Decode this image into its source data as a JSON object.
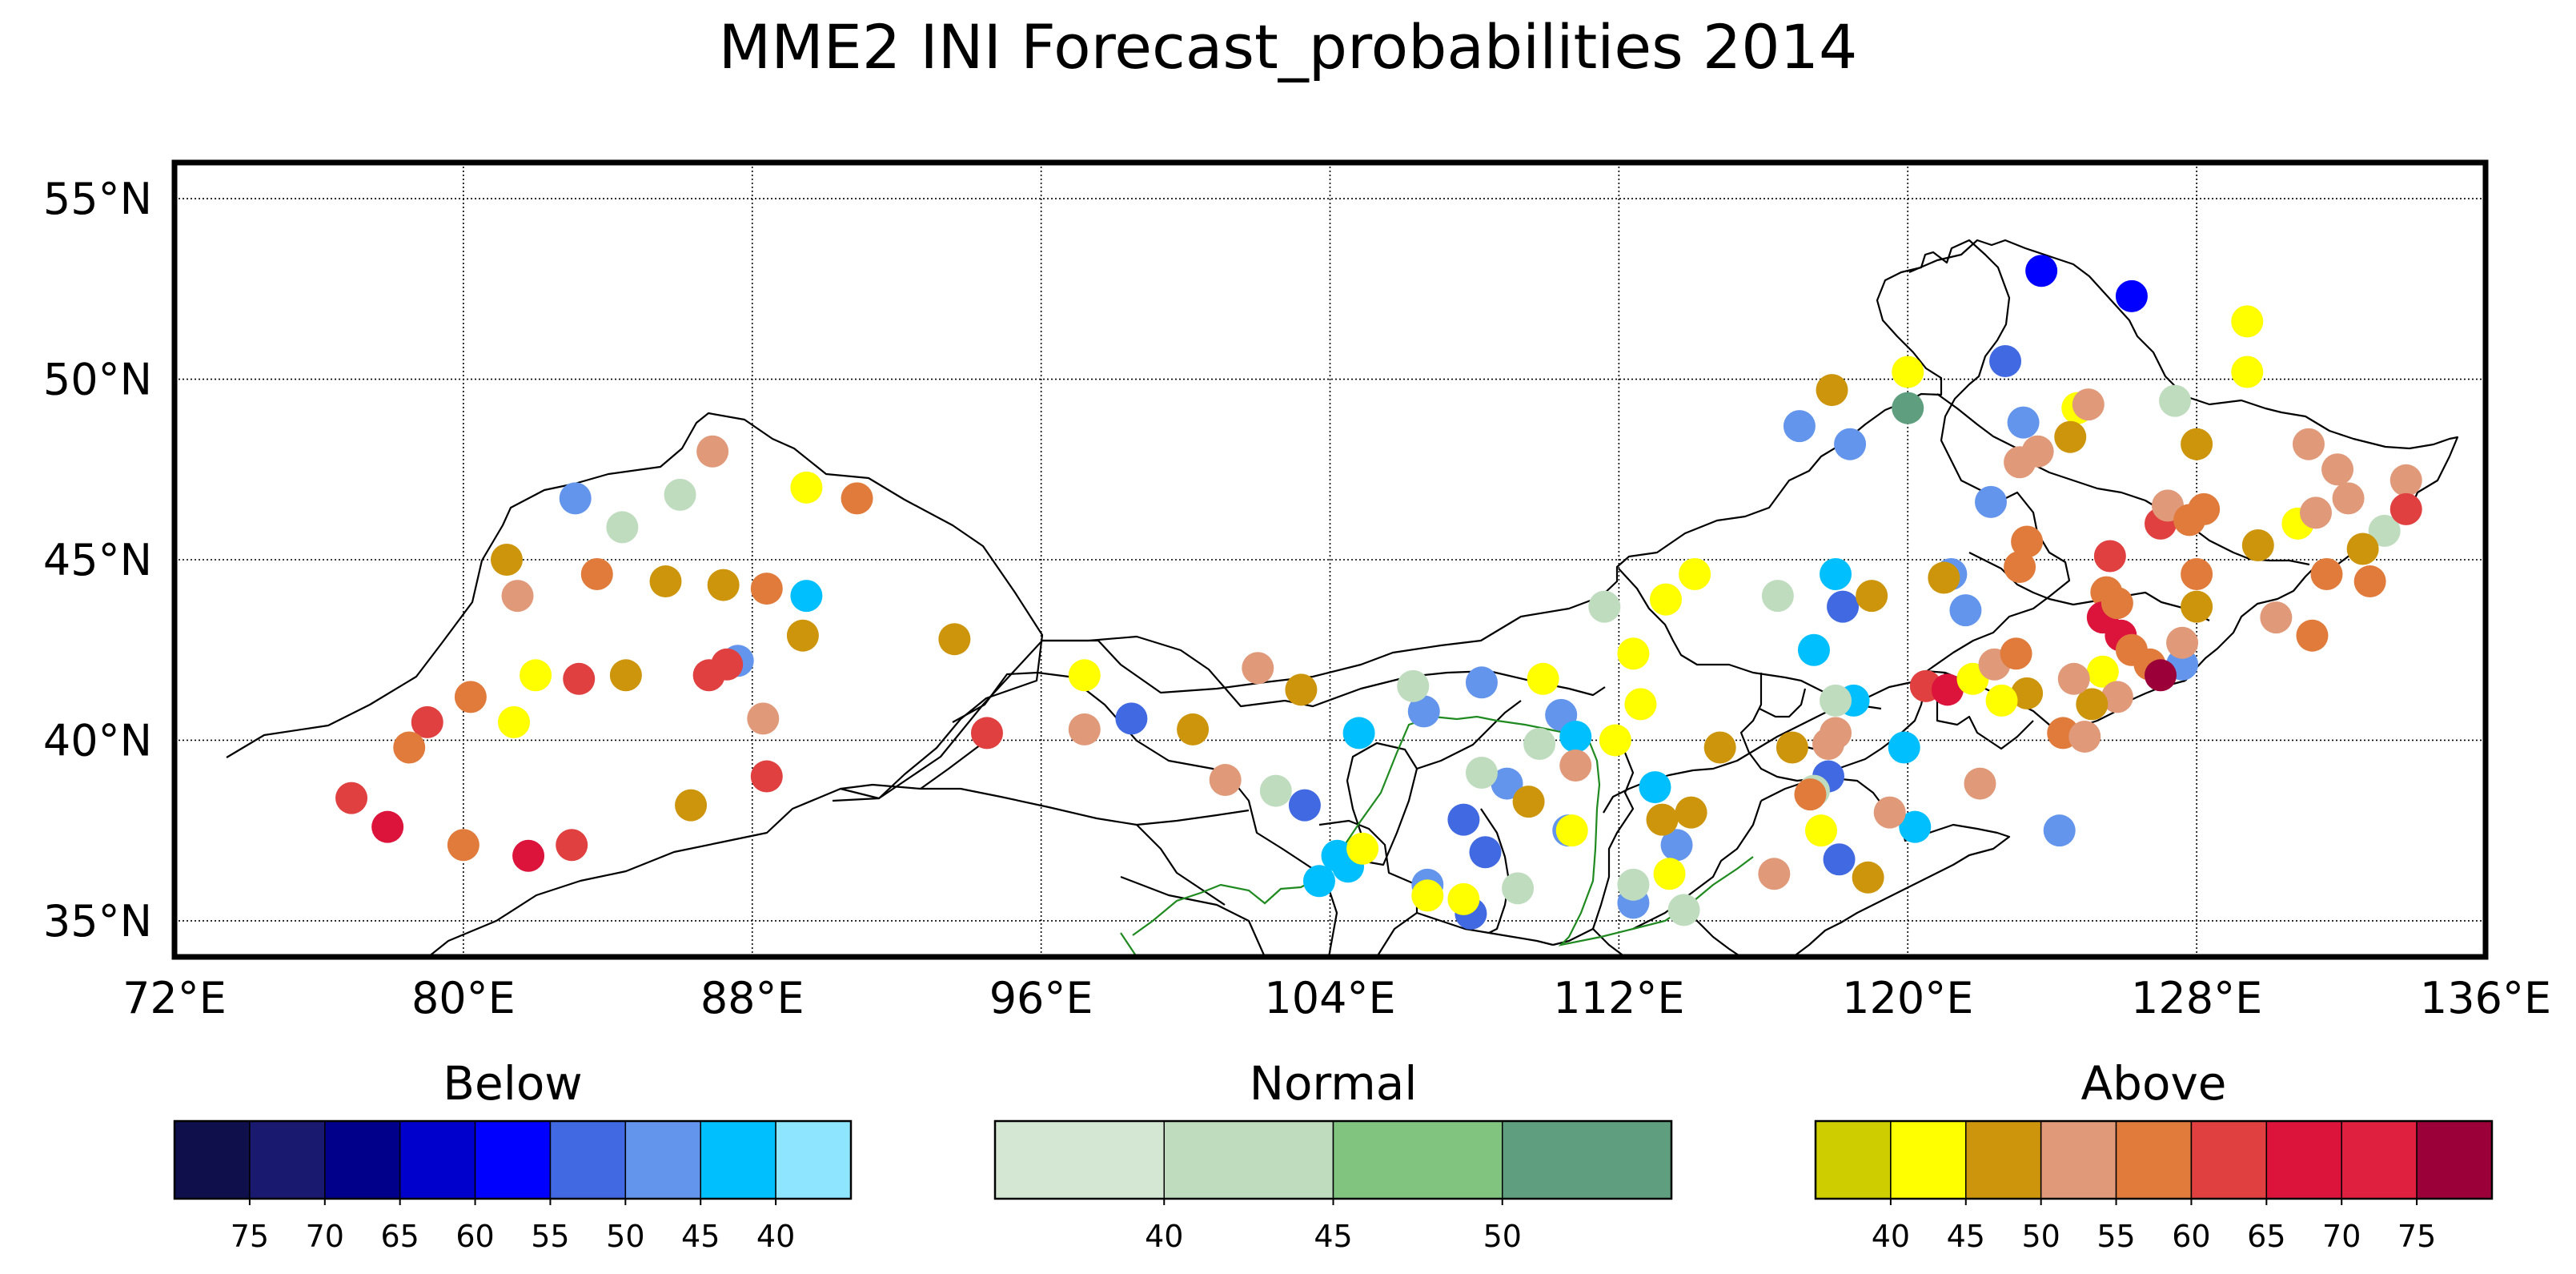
{
  "title": "MME2 INI Forecast_probabilities 2014",
  "map": {
    "lon_range": [
      72,
      136
    ],
    "lat_range": [
      34,
      56
    ],
    "lon_ticks": [
      {
        "value": 72,
        "label": "72°E"
      },
      {
        "value": 80,
        "label": "80°E"
      },
      {
        "value": 88,
        "label": "88°E"
      },
      {
        "value": 96,
        "label": "96°E"
      },
      {
        "value": 104,
        "label": "104°E"
      },
      {
        "value": 112,
        "label": "112°E"
      },
      {
        "value": 120,
        "label": "120°E"
      },
      {
        "value": 128,
        "label": "128°E"
      },
      {
        "value": 136,
        "label": "136°E"
      }
    ],
    "lat_ticks": [
      {
        "value": 35,
        "label": "35°N"
      },
      {
        "value": 40,
        "label": "40°N"
      },
      {
        "value": 45,
        "label": "45°N"
      },
      {
        "value": 50,
        "label": "50°N"
      },
      {
        "value": 55,
        "label": "55°N"
      }
    ],
    "gridlines": "dotted",
    "border_color": "#000000",
    "river_color": "#1f8a1f"
  },
  "legends": [
    {
      "title": "Below",
      "colors": [
        "#0f0f4b",
        "#19196f",
        "#00008b",
        "#0000cd",
        "#0000ff",
        "#4169e1",
        "#6495ed",
        "#00bfff",
        "#8ee5ff"
      ],
      "tick_labels": [
        "75",
        "70",
        "65",
        "60",
        "55",
        "50",
        "45",
        "40"
      ]
    },
    {
      "title": "Normal",
      "colors": [
        "#d3e7d3",
        "#bfdcbf",
        "#80c480",
        "#5f9f7f"
      ],
      "tick_labels": [
        "40",
        "45",
        "50"
      ]
    },
    {
      "title": "Above",
      "colors": [
        "#cdcd00",
        "#ffff00",
        "#cd950c",
        "#e09a7a",
        "#e07b3c",
        "#e04040",
        "#dc143c",
        "#e0203f",
        "#9b0039"
      ],
      "tick_labels": [
        "40",
        "45",
        "50",
        "55",
        "60",
        "65",
        "70",
        "75"
      ]
    }
  ],
  "chart_data": {
    "type": "scatter",
    "title": "MME2 INI Forecast_probabilities 2014",
    "xlabel": "",
    "ylabel": "",
    "xlim": [
      72,
      136
    ],
    "ylim": [
      34,
      56
    ],
    "grid": true,
    "series": [
      {
        "name": "Below",
        "points": [
          [
            123.7,
            53.0,
            55
          ],
          [
            126.2,
            52.3,
            55
          ],
          [
            122.7,
            50.5,
            50
          ],
          [
            117.0,
            48.7,
            45
          ],
          [
            118.4,
            48.2,
            45
          ],
          [
            123.2,
            48.8,
            45
          ],
          [
            122.3,
            46.6,
            45
          ],
          [
            121.2,
            44.6,
            45
          ],
          [
            121.6,
            43.6,
            45
          ],
          [
            127.6,
            42.1,
            45
          ],
          [
            83.1,
            46.7,
            45
          ],
          [
            87.6,
            42.2,
            45
          ],
          [
            98.5,
            40.6,
            50
          ],
          [
            106.6,
            40.8,
            45
          ],
          [
            108.2,
            41.6,
            45
          ],
          [
            110.4,
            40.7,
            45
          ],
          [
            103.3,
            38.2,
            50
          ],
          [
            108.9,
            38.8,
            45
          ],
          [
            107.7,
            37.8,
            50
          ],
          [
            108.3,
            36.9,
            50
          ],
          [
            110.6,
            37.5,
            45
          ],
          [
            113.6,
            37.1,
            45
          ],
          [
            112.4,
            35.5,
            45
          ],
          [
            106.7,
            36.0,
            45
          ],
          [
            107.9,
            35.2,
            50
          ],
          [
            118.1,
            36.7,
            50
          ],
          [
            117.8,
            39.0,
            50
          ],
          [
            118.2,
            43.7,
            50
          ],
          [
            124.2,
            37.5,
            45
          ],
          [
            118.0,
            44.6,
            40
          ],
          [
            117.4,
            42.5,
            40
          ],
          [
            118.5,
            41.1,
            40
          ],
          [
            89.5,
            44.0,
            40
          ],
          [
            110.8,
            40.1,
            40
          ],
          [
            113.0,
            38.7,
            40
          ],
          [
            104.8,
            40.2,
            40
          ],
          [
            104.2,
            36.8,
            40
          ],
          [
            103.7,
            36.1,
            40
          ],
          [
            119.9,
            39.8,
            40
          ],
          [
            120.2,
            37.6,
            40
          ],
          [
            104.5,
            36.5,
            40
          ]
        ]
      },
      {
        "name": "Normal",
        "points": [
          [
            120.0,
            49.2,
            50
          ],
          [
            84.4,
            45.9,
            40
          ],
          [
            86.0,
            46.8,
            40
          ],
          [
            102.5,
            38.6,
            40
          ],
          [
            106.3,
            41.5,
            40
          ],
          [
            108.2,
            39.1,
            40
          ],
          [
            109.8,
            39.9,
            40
          ],
          [
            111.6,
            43.7,
            40
          ],
          [
            112.4,
            36.0,
            40
          ],
          [
            113.8,
            35.3,
            40
          ],
          [
            116.4,
            44.0,
            40
          ],
          [
            118.0,
            41.1,
            40
          ],
          [
            127.4,
            49.4,
            40
          ],
          [
            133.2,
            45.8,
            40
          ],
          [
            109.2,
            35.9,
            40
          ],
          [
            117.4,
            38.6,
            40
          ]
        ]
      },
      {
        "name": "Above",
        "points": [
          [
            81.2,
            45.0,
            45
          ],
          [
            81.5,
            44.0,
            50
          ],
          [
            85.6,
            44.4,
            45
          ],
          [
            87.2,
            44.3,
            45
          ],
          [
            86.9,
            48.0,
            50
          ],
          [
            89.5,
            47.0,
            40
          ],
          [
            90.9,
            46.7,
            55
          ],
          [
            83.7,
            44.6,
            55
          ],
          [
            88.4,
            44.2,
            55
          ],
          [
            82.0,
            41.8,
            40
          ],
          [
            83.2,
            41.7,
            60
          ],
          [
            84.5,
            41.8,
            45
          ],
          [
            86.8,
            41.8,
            60
          ],
          [
            87.3,
            42.1,
            60
          ],
          [
            88.3,
            40.6,
            50
          ],
          [
            89.4,
            42.9,
            45
          ],
          [
            81.4,
            40.5,
            40
          ],
          [
            80.2,
            41.2,
            55
          ],
          [
            79.0,
            40.5,
            60
          ],
          [
            78.5,
            39.8,
            55
          ],
          [
            76.9,
            38.4,
            60
          ],
          [
            77.9,
            37.6,
            65
          ],
          [
            80.0,
            37.1,
            55
          ],
          [
            81.8,
            36.8,
            65
          ],
          [
            83.0,
            37.1,
            60
          ],
          [
            86.3,
            38.2,
            45
          ],
          [
            88.4,
            39.0,
            60
          ],
          [
            93.6,
            42.8,
            45
          ],
          [
            94.5,
            40.2,
            60
          ],
          [
            97.2,
            40.3,
            50
          ],
          [
            97.2,
            41.8,
            40
          ],
          [
            100.2,
            40.3,
            45
          ],
          [
            101.1,
            38.9,
            50
          ],
          [
            102.0,
            42.0,
            50
          ],
          [
            103.2,
            41.4,
            45
          ],
          [
            104.9,
            37.0,
            40
          ],
          [
            106.7,
            35.7,
            40
          ],
          [
            107.7,
            35.6,
            40
          ],
          [
            109.9,
            41.7,
            40
          ],
          [
            109.5,
            38.3,
            45
          ],
          [
            110.8,
            39.3,
            50
          ],
          [
            110.7,
            37.5,
            40
          ],
          [
            111.9,
            40.0,
            40
          ],
          [
            112.4,
            42.4,
            40
          ],
          [
            112.6,
            41.0,
            40
          ],
          [
            113.3,
            43.9,
            40
          ],
          [
            114.1,
            44.6,
            40
          ],
          [
            114.8,
            39.8,
            45
          ],
          [
            113.2,
            37.8,
            45
          ],
          [
            113.4,
            36.3,
            40
          ],
          [
            114.0,
            38.0,
            45
          ],
          [
            116.3,
            36.3,
            50
          ],
          [
            116.8,
            39.8,
            45
          ],
          [
            117.3,
            38.5,
            55
          ],
          [
            117.8,
            39.9,
            50
          ],
          [
            118.0,
            40.2,
            50
          ],
          [
            117.6,
            37.5,
            40
          ],
          [
            118.9,
            36.2,
            45
          ],
          [
            119.0,
            44.0,
            45
          ],
          [
            119.5,
            38.0,
            50
          ],
          [
            117.9,
            49.7,
            45
          ],
          [
            120.0,
            50.2,
            40
          ],
          [
            121.0,
            44.5,
            45
          ],
          [
            120.5,
            41.5,
            60
          ],
          [
            121.1,
            41.4,
            65
          ],
          [
            121.8,
            41.7,
            40
          ],
          [
            122.4,
            42.1,
            50
          ],
          [
            122.0,
            38.8,
            50
          ],
          [
            123.0,
            42.4,
            55
          ],
          [
            123.1,
            44.8,
            55
          ],
          [
            123.3,
            45.5,
            55
          ],
          [
            123.1,
            47.7,
            50
          ],
          [
            123.6,
            48.0,
            50
          ],
          [
            124.7,
            49.2,
            40
          ],
          [
            124.5,
            48.4,
            45
          ],
          [
            125.0,
            49.3,
            50
          ],
          [
            125.5,
            44.1,
            55
          ],
          [
            125.4,
            43.4,
            65
          ],
          [
            125.9,
            42.9,
            65
          ],
          [
            126.2,
            42.5,
            55
          ],
          [
            125.4,
            41.9,
            40
          ],
          [
            125.8,
            41.2,
            50
          ],
          [
            125.1,
            41.0,
            45
          ],
          [
            124.3,
            40.2,
            55
          ],
          [
            124.9,
            40.1,
            50
          ],
          [
            126.7,
            42.1,
            55
          ],
          [
            127.0,
            41.8,
            75
          ],
          [
            127.0,
            46.0,
            60
          ],
          [
            127.2,
            46.5,
            50
          ],
          [
            127.8,
            46.1,
            55
          ],
          [
            128.0,
            48.2,
            45
          ],
          [
            128.2,
            46.4,
            55
          ],
          [
            128.0,
            44.6,
            55
          ],
          [
            128.0,
            43.7,
            45
          ],
          [
            127.6,
            42.7,
            50
          ],
          [
            129.4,
            51.6,
            40
          ],
          [
            129.4,
            50.2,
            40
          ],
          [
            129.7,
            45.4,
            45
          ],
          [
            130.2,
            43.4,
            50
          ],
          [
            130.8,
            46.0,
            40
          ],
          [
            131.1,
            48.2,
            50
          ],
          [
            131.3,
            46.3,
            50
          ],
          [
            131.6,
            44.6,
            55
          ],
          [
            131.2,
            42.9,
            55
          ],
          [
            131.9,
            47.5,
            50
          ],
          [
            132.2,
            46.7,
            50
          ],
          [
            132.6,
            45.3,
            45
          ],
          [
            132.8,
            44.4,
            55
          ],
          [
            133.8,
            47.2,
            50
          ],
          [
            133.8,
            46.4,
            60
          ],
          [
            125.6,
            45.1,
            60
          ],
          [
            125.8,
            43.8,
            55
          ],
          [
            123.3,
            41.3,
            45
          ],
          [
            124.6,
            41.7,
            50
          ],
          [
            122.6,
            41.1,
            40
          ]
        ]
      }
    ]
  }
}
